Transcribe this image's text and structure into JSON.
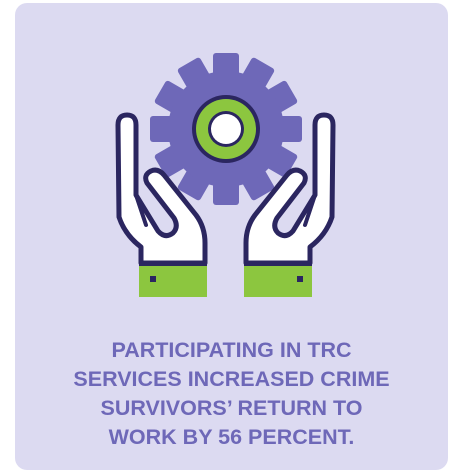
{
  "caption": {
    "lines": [
      "PARTICIPATING IN TRC",
      "SERVICES INCREASED CRIME",
      "SURVIVORS’ RETURN TO",
      "WORK BY 56 PERCENT."
    ]
  },
  "icons": {
    "main": "gear-icon",
    "support": "hands-icon"
  },
  "colors": {
    "background": "#dcdaf1",
    "gear": "#6e68b8",
    "gear_ring": "#8cc63f",
    "outline": "#2b2660",
    "cuff": "#8cc63f",
    "text": "#6e68b8"
  }
}
